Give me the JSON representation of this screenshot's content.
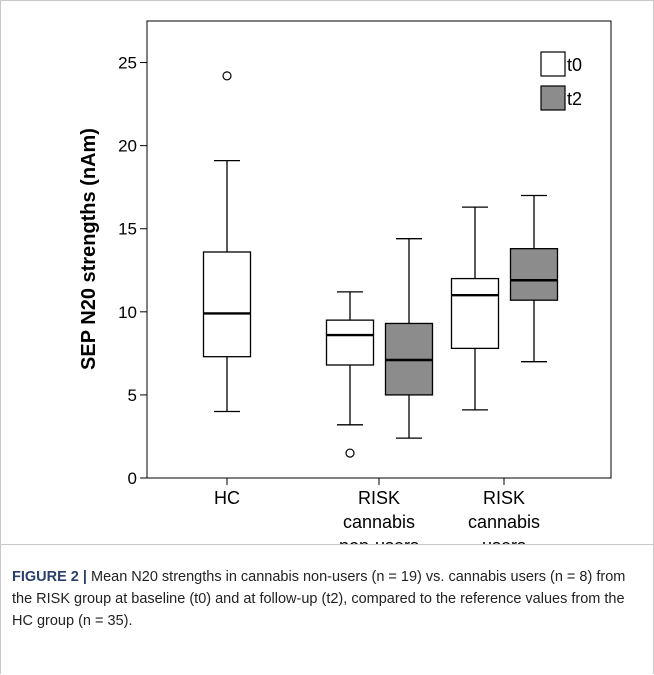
{
  "chart_data": {
    "type": "boxplot",
    "ylabel": "SEP N20 strengths (nAm)",
    "ylim": [
      0,
      27.5
    ],
    "yticks": [
      0,
      5,
      10,
      15,
      20,
      25
    ],
    "legend": {
      "placement": "top-right",
      "entries": [
        {
          "name": "t0",
          "color": "#ffffff"
        },
        {
          "name": "t2",
          "color": "#8c8c8c"
        }
      ]
    },
    "categories": [
      {
        "lines": [
          "HC"
        ]
      },
      {
        "lines": [
          "RISK",
          "cannabis",
          "non-users"
        ]
      },
      {
        "lines": [
          "RISK",
          "cannabis",
          "users"
        ]
      }
    ],
    "boxes": [
      {
        "category": 0,
        "series": "t0",
        "whisker_low": 4.0,
        "q1": 7.3,
        "median": 9.9,
        "q3": 13.6,
        "whisker_high": 19.1,
        "outliers": [
          24.2
        ]
      },
      {
        "category": 1,
        "series": "t0",
        "whisker_low": 3.2,
        "q1": 6.8,
        "median": 8.6,
        "q3": 9.5,
        "whisker_high": 11.2,
        "outliers": [
          1.5
        ]
      },
      {
        "category": 1,
        "series": "t2",
        "whisker_low": 2.4,
        "q1": 5.0,
        "median": 7.1,
        "q3": 9.3,
        "whisker_high": 14.4,
        "outliers": []
      },
      {
        "category": 2,
        "series": "t0",
        "whisker_low": 4.1,
        "q1": 7.8,
        "median": 11.0,
        "q3": 12.0,
        "whisker_high": 16.3,
        "outliers": []
      },
      {
        "category": 2,
        "series": "t2",
        "whisker_low": 7.0,
        "q1": 10.7,
        "median": 11.9,
        "q3": 13.8,
        "whisker_high": 17.0,
        "outliers": []
      }
    ]
  },
  "caption": {
    "label": "FIGURE 2 |",
    "text": " Mean N20 strengths in cannabis non-users (n = 19) vs. cannabis users (n = 8) from the RISK group at baseline (t0) and at follow-up (t2), compared to the reference values from the HC group (n = 35)."
  }
}
